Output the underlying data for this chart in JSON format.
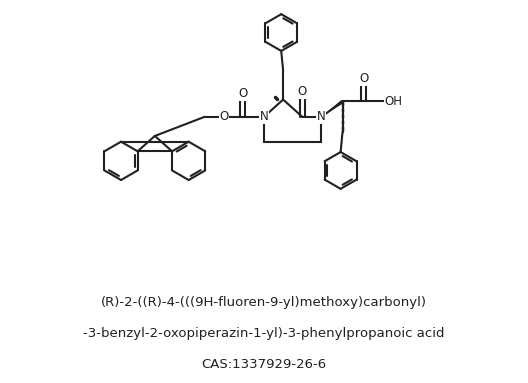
{
  "bg_color": "#ffffff",
  "text_color": "#231f20",
  "fig_width": 5.28,
  "fig_height": 3.83,
  "dpi": 100,
  "line1_parts": [
    {
      "text": "(",
      "italic": false
    },
    {
      "text": "R",
      "italic": true
    },
    {
      "text": ")-2-((",
      "italic": false
    },
    {
      "text": "R",
      "italic": true
    },
    {
      "text": ")-4-(((9",
      "italic": false
    },
    {
      "text": "H",
      "italic": true
    },
    {
      "text": "-fluoren-9-yl)methoxy)carbonyl)",
      "italic": false
    }
  ],
  "line2": "-3-benzyl-2-oxopiperazin-1-yl)-3-phenylpropanoic acid",
  "line3": "CAS:1337929-26-6",
  "name_fontsize": 9.5
}
